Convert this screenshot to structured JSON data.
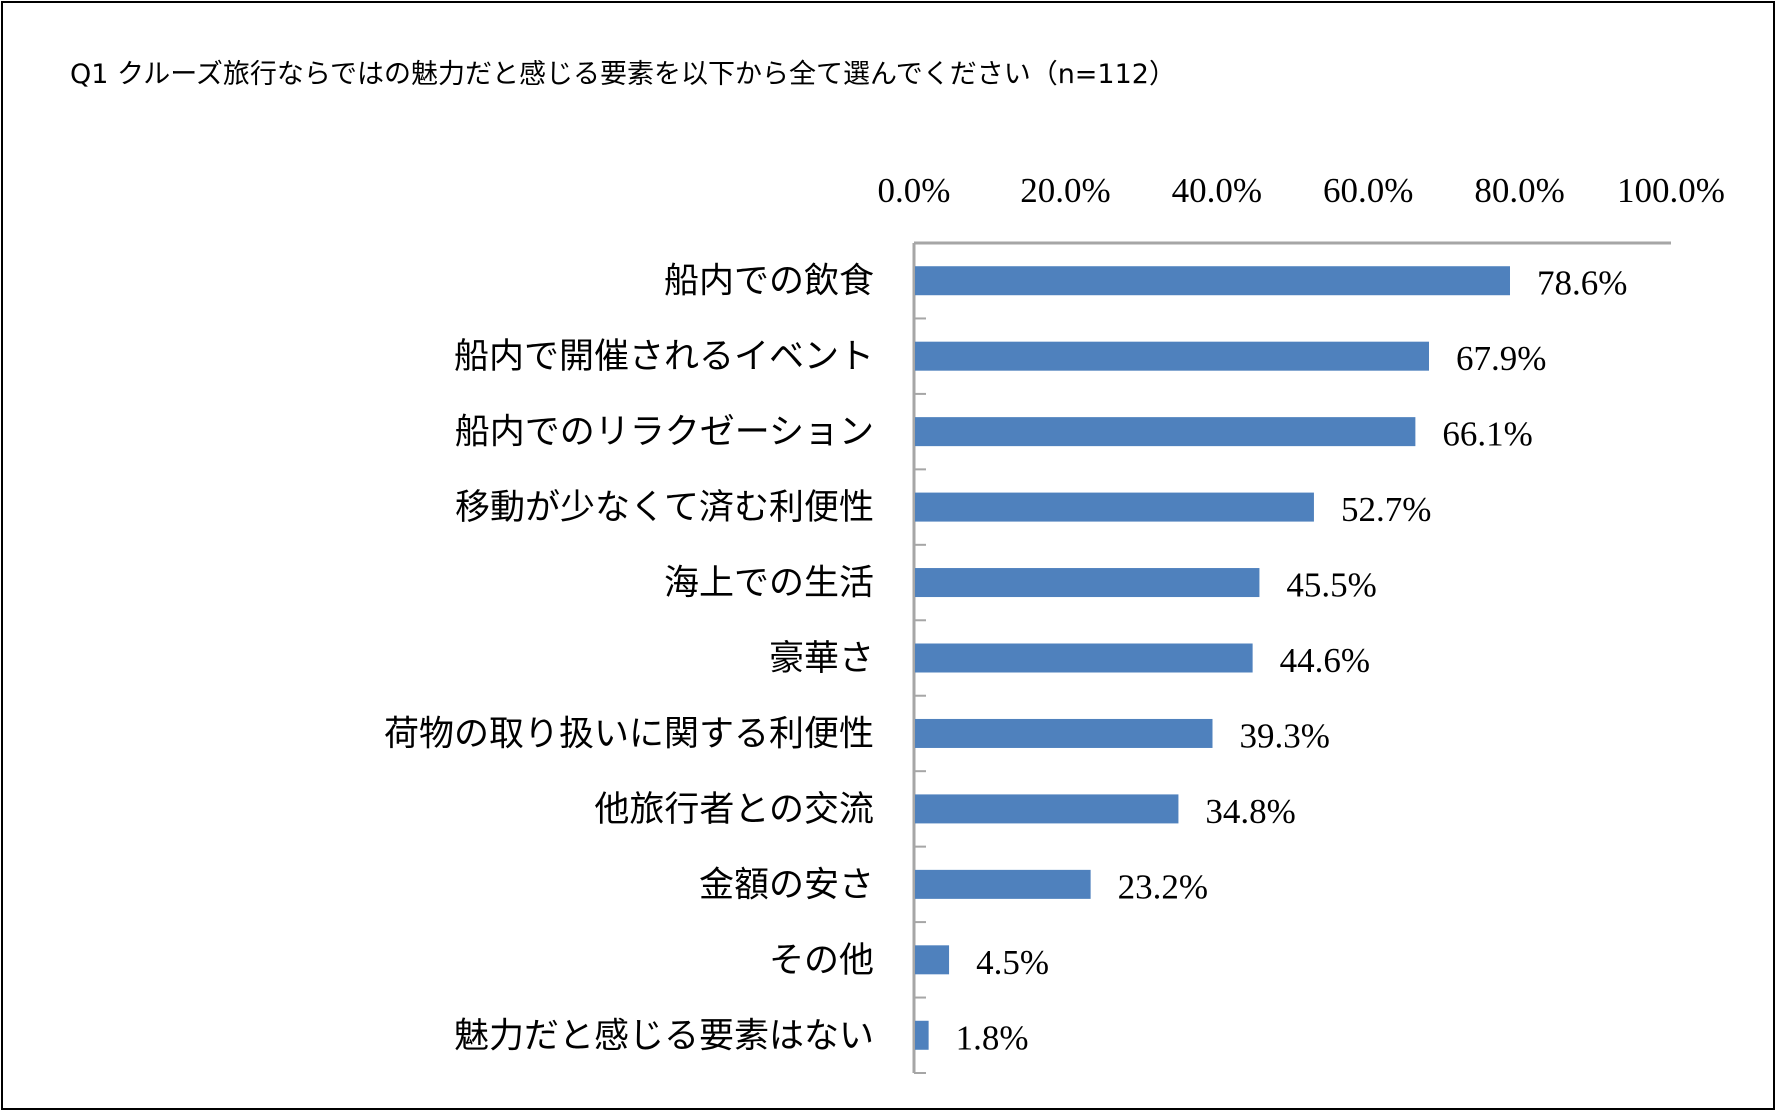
{
  "chart_data": {
    "type": "bar",
    "orientation": "horizontal",
    "title": "Q1 クルーズ旅行ならではの魅力だと感じる要素を以下から全て選んでください（n=112）",
    "categories": [
      "船内での飲食",
      "船内で開催されるイベント",
      "船内でのリラクゼーション",
      "移動が少なくて済む利便性",
      "海上での生活",
      "豪華さ",
      "荷物の取り扱いに関する利便性",
      "他旅行者との交流",
      "金額の安さ",
      "その他",
      "魅力だと感じる要素はない"
    ],
    "values": [
      78.6,
      67.9,
      66.1,
      52.7,
      45.5,
      44.6,
      39.3,
      34.8,
      23.2,
      4.5,
      1.8
    ],
    "data_labels": [
      "78.6%",
      "67.9%",
      "66.1%",
      "52.7%",
      "45.5%",
      "44.6%",
      "39.3%",
      "34.8%",
      "23.2%",
      "4.5%",
      "1.8%"
    ],
    "xlim": [
      0,
      100
    ],
    "x_ticks": [
      "0.0%",
      "20.0%",
      "40.0%",
      "60.0%",
      "80.0%",
      "100.0%"
    ],
    "x_axis_position": "top",
    "grid": false,
    "legend": "none",
    "colors": {
      "bar": "#4f81bd",
      "axis": "#a6a6a6"
    }
  }
}
